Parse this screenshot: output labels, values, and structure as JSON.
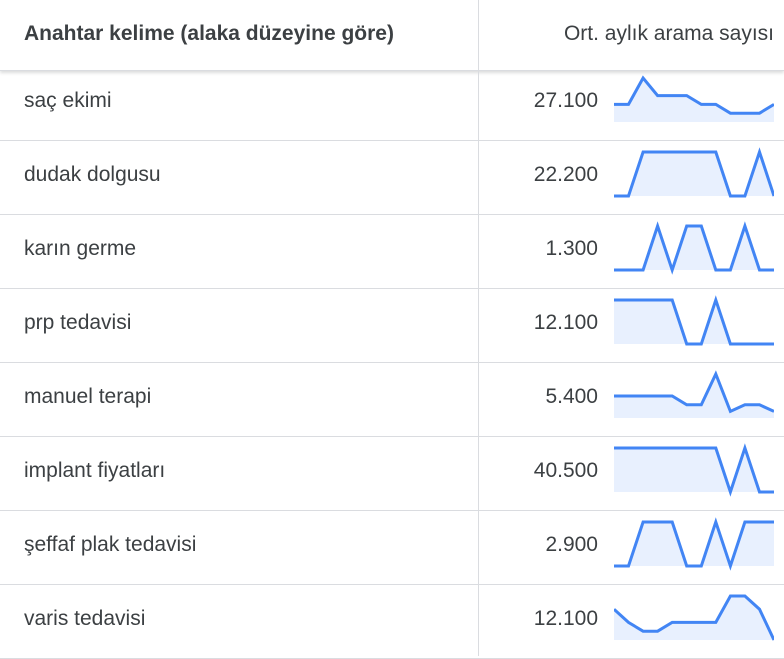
{
  "header": {
    "keyword_label": "Anahtar kelime (alaka düzeyine göre)",
    "volume_label": "Ort. aylık arama sayısı"
  },
  "colors": {
    "trend_line": "#4285f4",
    "trend_fill": "#e8f0fe",
    "divider": "#dadce0"
  },
  "rows": [
    {
      "keyword": "saç ekimi",
      "volume": "27.100",
      "trend": [
        0.4,
        0.4,
        1,
        0.6,
        0.6,
        0.6,
        0.4,
        0.4,
        0.2,
        0.2,
        0.2,
        0.4
      ]
    },
    {
      "keyword": "dudak dolgusu",
      "volume": "22.200",
      "trend": [
        0,
        0,
        1,
        1,
        1,
        1,
        1,
        1,
        0,
        0,
        1,
        0
      ]
    },
    {
      "keyword": "karın germe",
      "volume": "1.300",
      "trend": [
        0,
        0,
        0,
        1,
        0,
        1,
        1,
        0,
        0,
        1,
        0,
        0
      ]
    },
    {
      "keyword": "prp tedavisi",
      "volume": "12.100",
      "trend": [
        1,
        1,
        1,
        1,
        1,
        0,
        0,
        1,
        0,
        0,
        0,
        0
      ]
    },
    {
      "keyword": "manuel terapi",
      "volume": "5.400",
      "trend": [
        0.5,
        0.5,
        0.5,
        0.5,
        0.5,
        0.3,
        0.3,
        1,
        0.15,
        0.3,
        0.3,
        0.15
      ]
    },
    {
      "keyword": "implant fiyatları",
      "volume": "40.500",
      "trend": [
        1,
        1,
        1,
        1,
        1,
        1,
        1,
        1,
        0,
        1,
        0,
        0
      ]
    },
    {
      "keyword": "şeffaf plak tedavisi",
      "volume": "2.900",
      "trend": [
        0,
        0,
        1,
        1,
        1,
        0,
        0,
        1,
        0,
        1,
        1,
        1
      ]
    },
    {
      "keyword": "varis tedavisi",
      "volume": "12.100",
      "trend": [
        0.7,
        0.4,
        0.2,
        0.2,
        0.4,
        0.4,
        0.4,
        0.4,
        1,
        1,
        0.7,
        0
      ]
    }
  ]
}
